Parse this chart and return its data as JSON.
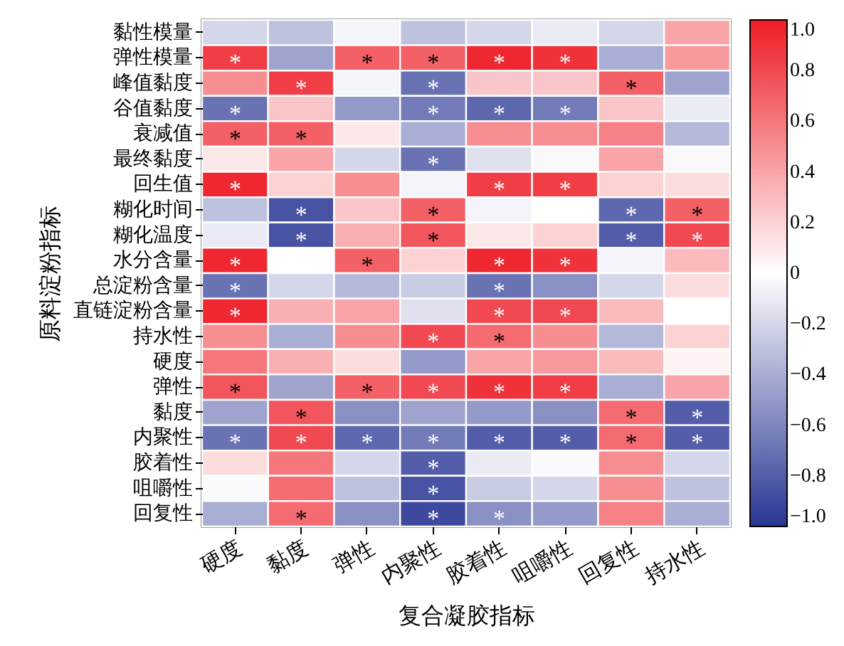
{
  "chart_data": {
    "type": "heatmap",
    "xlabel": "复合凝胶指标",
    "ylabel": "原料淀粉指标",
    "categories": [
      "硬度",
      "黏度",
      "弹性",
      "内聚性",
      "胶着性",
      "咀嚼性",
      "回复性",
      "持水性"
    ],
    "y_categories": [
      "黏性模量",
      "弹性模量",
      "峰值黏度",
      "谷值黏度",
      "衰减值",
      "最终黏度",
      "回生值",
      "糊化时间",
      "糊化温度",
      "水分含量",
      "总淀粉含量",
      "直链淀粉含量",
      "持水性",
      "硬度",
      "弹性",
      "黏度",
      "内聚性",
      "胶着性",
      "咀嚼性",
      "回复性"
    ],
    "cells": [
      [
        -0.2,
        -0.3,
        -0.05,
        -0.3,
        -0.2,
        -0.1,
        -0.2,
        0.4
      ],
      [
        0.85,
        -0.45,
        0.7,
        0.7,
        0.95,
        0.9,
        -0.4,
        0.45
      ],
      [
        0.5,
        0.85,
        -0.05,
        -0.7,
        0.25,
        0.25,
        0.7,
        -0.45
      ],
      [
        -0.7,
        0.25,
        -0.5,
        -0.65,
        -0.75,
        -0.65,
        0.25,
        -0.1
      ],
      [
        0.7,
        0.7,
        0.1,
        -0.4,
        0.5,
        0.5,
        0.55,
        -0.35
      ],
      [
        0.1,
        0.4,
        -0.2,
        -0.7,
        -0.15,
        -0.03,
        0.4,
        -0.03
      ],
      [
        0.95,
        0.2,
        0.5,
        -0.05,
        0.85,
        0.85,
        0.2,
        0.15
      ],
      [
        -0.3,
        -0.85,
        0.25,
        0.7,
        -0.05,
        0.0,
        -0.75,
        0.7
      ],
      [
        -0.1,
        -0.85,
        0.35,
        0.75,
        0.1,
        0.2,
        -0.8,
        0.8
      ],
      [
        0.95,
        0.0,
        0.7,
        0.2,
        0.95,
        0.9,
        -0.05,
        0.3
      ],
      [
        -0.7,
        -0.2,
        -0.35,
        -0.25,
        -0.7,
        -0.55,
        -0.2,
        0.15
      ],
      [
        0.95,
        0.35,
        0.4,
        -0.15,
        0.8,
        0.8,
        0.3,
        0.0
      ],
      [
        0.5,
        -0.4,
        0.5,
        0.8,
        0.65,
        0.5,
        -0.35,
        0.2
      ],
      [
        0.6,
        0.35,
        0.15,
        -0.5,
        0.4,
        0.45,
        0.3,
        0.05
      ],
      [
        0.75,
        -0.45,
        0.7,
        0.8,
        0.9,
        0.85,
        -0.4,
        0.4
      ],
      [
        -0.45,
        0.75,
        -0.55,
        -0.45,
        -0.5,
        -0.55,
        0.65,
        -0.8
      ],
      [
        -0.7,
        0.8,
        -0.75,
        -0.65,
        -0.8,
        -0.8,
        0.65,
        -0.8
      ],
      [
        0.15,
        0.6,
        -0.2,
        -0.8,
        -0.1,
        -0.02,
        0.5,
        -0.2
      ],
      [
        -0.02,
        0.65,
        -0.3,
        -0.85,
        -0.25,
        -0.2,
        0.5,
        -0.3
      ],
      [
        -0.4,
        0.65,
        -0.55,
        -0.9,
        -0.55,
        -0.5,
        0.55,
        -0.4
      ]
    ],
    "cell_labels": [
      [
        null,
        null,
        null,
        null,
        null,
        null,
        null,
        null
      ],
      [
        "*",
        null,
        "*",
        "*",
        "*",
        "*",
        null,
        null
      ],
      [
        null,
        "*",
        null,
        "*",
        null,
        null,
        "*",
        null
      ],
      [
        "*",
        null,
        null,
        "*",
        "*",
        "*",
        null,
        null
      ],
      [
        "*",
        "*",
        null,
        null,
        null,
        null,
        null,
        null
      ],
      [
        null,
        null,
        null,
        "*",
        null,
        null,
        null,
        null
      ],
      [
        "*",
        null,
        null,
        null,
        "*",
        "*",
        null,
        null
      ],
      [
        null,
        "*",
        null,
        "*",
        null,
        null,
        "*",
        "*"
      ],
      [
        null,
        "*",
        null,
        "*",
        null,
        null,
        "*",
        "*"
      ],
      [
        "*",
        null,
        "*",
        null,
        "*",
        "*",
        null,
        null
      ],
      [
        "*",
        null,
        null,
        null,
        "*",
        null,
        null,
        null
      ],
      [
        "*",
        null,
        null,
        null,
        "*",
        "*",
        null,
        null
      ],
      [
        null,
        null,
        null,
        "*",
        "*",
        null,
        null,
        null
      ],
      [
        null,
        null,
        null,
        null,
        null,
        null,
        null,
        null
      ],
      [
        "*",
        null,
        "*",
        "*",
        "*",
        "*",
        null,
        null
      ],
      [
        null,
        "*",
        null,
        null,
        null,
        null,
        "*",
        "*"
      ],
      [
        "*",
        "*",
        "*",
        "*",
        "*",
        "*",
        "*",
        "*"
      ],
      [
        null,
        null,
        null,
        "*",
        null,
        null,
        null,
        null
      ],
      [
        null,
        null,
        null,
        "*",
        null,
        null,
        null,
        null
      ],
      [
        null,
        "*",
        null,
        "*",
        "*",
        null,
        null,
        null
      ]
    ],
    "clim": [
      -1,
      1
    ],
    "cticks": [
      {
        "value": 1,
        "label": "1.0"
      },
      0.8,
      0.6,
      0.4,
      0.2,
      0,
      {
        "value": -0.2,
        "label": "−0.2"
      },
      {
        "value": -0.4,
        "label": "−0.4"
      },
      {
        "value": -0.6,
        "label": "−0.6"
      },
      {
        "value": -0.8,
        "label": "−0.8"
      },
      {
        "value": -1,
        "label": "−1.0"
      }
    ]
  }
}
